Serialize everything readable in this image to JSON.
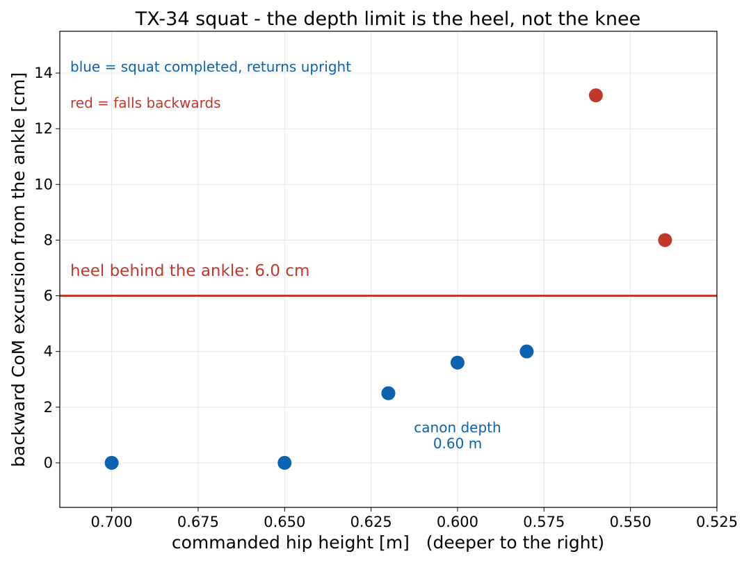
{
  "chart_data": {
    "type": "scatter",
    "title": "TX-34 squat - the depth limit is the heel, not the knee",
    "xlabel": "commanded hip height [m]   (deeper to the right)",
    "ylabel": "backward CoM excursion from the ankle [cm]",
    "xlim": [
      0.715,
      0.525
    ],
    "ylim": [
      -1.6,
      15.5
    ],
    "x_ticks": [
      0.7,
      0.675,
      0.65,
      0.625,
      0.6,
      0.575,
      0.55,
      0.525
    ],
    "x_tick_labels": [
      "0.700",
      "0.675",
      "0.650",
      "0.625",
      "0.600",
      "0.575",
      "0.550",
      "0.525"
    ],
    "y_ticks": [
      0,
      2,
      4,
      6,
      8,
      10,
      12,
      14
    ],
    "y_tick_labels": [
      "0",
      "2",
      "4",
      "6",
      "8",
      "10",
      "12",
      "14"
    ],
    "grid": true,
    "x_inverted": true,
    "series": [
      {
        "color": "#0a62b0",
        "points": [
          {
            "x": 0.7,
            "y": 0.0
          },
          {
            "x": 0.65,
            "y": 0.0
          },
          {
            "x": 0.62,
            "y": 2.5
          },
          {
            "x": 0.6,
            "y": 3.6
          },
          {
            "x": 0.58,
            "y": 4.0
          }
        ]
      },
      {
        "color": "#c0392b",
        "points": [
          {
            "x": 0.56,
            "y": 13.2
          },
          {
            "x": 0.54,
            "y": 8.0
          }
        ]
      }
    ],
    "reference_line": {
      "y": 6.0,
      "color": "#c0392b",
      "label": "heel behind the ankle: 6.0 cm"
    },
    "annotations": [
      {
        "text_lines": [
          "canon depth",
          "0.60 m"
        ],
        "color": "#0a62b0"
      }
    ],
    "legend_notes": [
      {
        "text": "blue = squat completed, returns upright",
        "color": "#0a62b0"
      },
      {
        "text": "red = falls backwards",
        "color": "#c0392b"
      }
    ]
  }
}
